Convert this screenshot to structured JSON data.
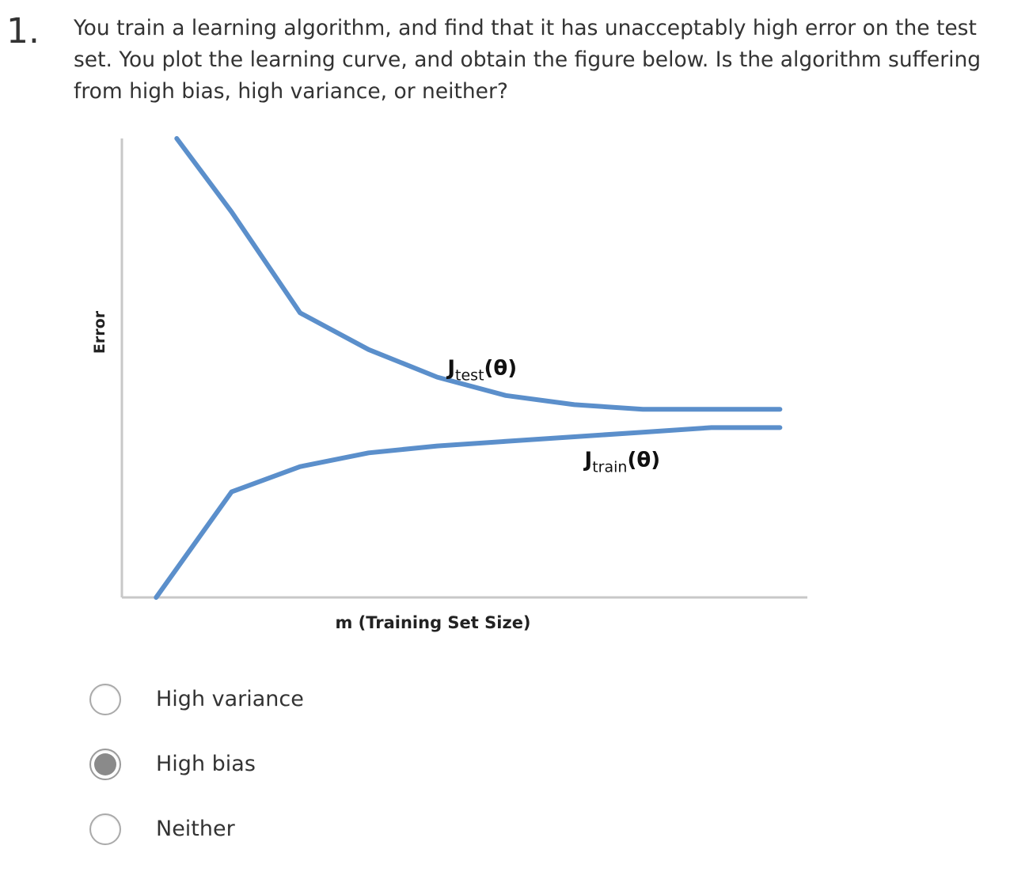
{
  "question": {
    "number": "1.",
    "text": "You train a learning algorithm, and find that it has unacceptably high error on the test set. You plot the learning curve, and obtain the figure below. Is the algorithm suffering from high bias, high variance, or neither?"
  },
  "chart_data": {
    "type": "line",
    "xlabel": "m (Training Set Size)",
    "ylabel": "Error",
    "xlim": [
      0,
      100
    ],
    "ylim": [
      0,
      100
    ],
    "grid": false,
    "x_ticks": false,
    "y_ticks": false,
    "colors": {
      "series": "#5b8fcb",
      "axis": "#c8c8c8"
    },
    "series": [
      {
        "name": "J_test(θ)",
        "label_main": "J",
        "label_sub": "test",
        "label_suffix": "(θ)",
        "x": [
          8,
          16,
          26,
          36,
          46,
          56,
          66,
          76,
          86,
          96
        ],
        "y": [
          100,
          84,
          62,
          54,
          48,
          44,
          42,
          41,
          41,
          41
        ]
      },
      {
        "name": "J_train(θ)",
        "label_main": "J",
        "label_sub": "train",
        "label_suffix": "(θ)",
        "x": [
          5,
          16,
          26,
          36,
          46,
          56,
          66,
          76,
          86,
          96
        ],
        "y": [
          0,
          23,
          28.5,
          31.5,
          33,
          34,
          35,
          36,
          37,
          37
        ]
      }
    ]
  },
  "options": [
    {
      "label": "High variance",
      "selected": false
    },
    {
      "label": "High bias",
      "selected": true
    },
    {
      "label": "Neither",
      "selected": false
    }
  ]
}
